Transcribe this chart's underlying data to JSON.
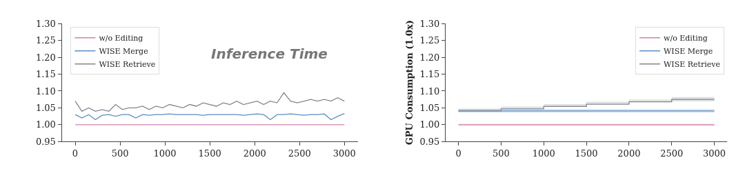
{
  "chart_data": [
    {
      "type": "line",
      "title": "Inference Time",
      "legend": "top left",
      "xlim": [
        -150,
        3150
      ],
      "xticks": [
        0,
        500,
        1000,
        1500,
        2000,
        2500,
        3000
      ],
      "ylim": [
        0.95,
        1.3
      ],
      "yticks": [
        0.95,
        {
          "value": 1.0,
          "label": "1.00"
        },
        1.05,
        {
          "value": 1.1,
          "label": "1.10"
        },
        1.15,
        {
          "value": 1.2,
          "label": "1.20"
        },
        1.25,
        {
          "value": 1.3,
          "label": "1.30"
        }
      ],
      "series": [
        {
          "name": "w/o Editing",
          "color": "#d580a8",
          "x": [
            0,
            3000
          ],
          "values": [
            1.0,
            1.0
          ]
        },
        {
          "name": "WISE Merge",
          "color": "#5b8cc4",
          "x": [
            0,
            75,
            150,
            225,
            300,
            375,
            450,
            525,
            600,
            675,
            750,
            825,
            900,
            975,
            1050,
            1125,
            1200,
            1275,
            1350,
            1425,
            1500,
            1575,
            1650,
            1725,
            1800,
            1875,
            1950,
            2025,
            2100,
            2175,
            2250,
            2325,
            2400,
            2475,
            2550,
            2625,
            2700,
            2775,
            2850,
            2925,
            3000
          ],
          "values": [
            1.03,
            1.02,
            1.03,
            1.015,
            1.028,
            1.03,
            1.025,
            1.03,
            1.03,
            1.02,
            1.03,
            1.028,
            1.03,
            1.03,
            1.032,
            1.03,
            1.03,
            1.03,
            1.03,
            1.028,
            1.03,
            1.03,
            1.03,
            1.03,
            1.03,
            1.028,
            1.03,
            1.032,
            1.03,
            1.015,
            1.03,
            1.03,
            1.032,
            1.03,
            1.028,
            1.03,
            1.03,
            1.032,
            1.015,
            1.025,
            1.033
          ]
        },
        {
          "name": "WISE Retrieve",
          "color": "#80868f",
          "x": [
            0,
            75,
            150,
            225,
            300,
            375,
            450,
            525,
            600,
            675,
            750,
            825,
            900,
            975,
            1050,
            1125,
            1200,
            1275,
            1350,
            1425,
            1500,
            1575,
            1650,
            1725,
            1800,
            1875,
            1950,
            2025,
            2100,
            2175,
            2250,
            2325,
            2400,
            2475,
            2550,
            2625,
            2700,
            2775,
            2850,
            2925,
            3000
          ],
          "values": [
            1.07,
            1.04,
            1.05,
            1.04,
            1.045,
            1.04,
            1.06,
            1.045,
            1.05,
            1.05,
            1.055,
            1.045,
            1.055,
            1.05,
            1.06,
            1.055,
            1.05,
            1.06,
            1.055,
            1.065,
            1.06,
            1.055,
            1.065,
            1.06,
            1.07,
            1.06,
            1.065,
            1.07,
            1.06,
            1.07,
            1.065,
            1.095,
            1.07,
            1.065,
            1.07,
            1.075,
            1.07,
            1.075,
            1.07,
            1.08,
            1.07
          ]
        }
      ]
    },
    {
      "type": "step",
      "ylabel": "GPU Consumption (1.0x)",
      "legend": "top right",
      "xlim": [
        -150,
        3150
      ],
      "xticks": [
        0,
        500,
        1000,
        1500,
        2000,
        2500,
        3000
      ],
      "ylim": [
        0.95,
        1.3
      ],
      "yticks": [
        0.95,
        {
          "value": 1.0,
          "label": "1.00"
        },
        1.05,
        {
          "value": 1.1,
          "label": "1.10"
        },
        1.15,
        {
          "value": 1.2,
          "label": "1.20"
        },
        1.25,
        {
          "value": 1.3,
          "label": "1.30"
        }
      ],
      "series": [
        {
          "name": "w/o Editing",
          "color": "#d580a8",
          "x": [
            0,
            3000
          ],
          "values": [
            1.0,
            1.0
          ],
          "lower": [
            0.997,
            0.997
          ],
          "upper": [
            1.003,
            1.003
          ]
        },
        {
          "name": "WISE Merge",
          "color": "#5b8cc4",
          "x": [
            0,
            3000
          ],
          "values": [
            1.041,
            1.041
          ],
          "lower": [
            1.036,
            1.036
          ],
          "upper": [
            1.046,
            1.046
          ]
        },
        {
          "name": "WISE Retrieve",
          "color": "#80868f",
          "x": [
            0,
            500,
            1000,
            1500,
            2000,
            2500,
            3000
          ],
          "values": [
            1.041,
            1.047,
            1.054,
            1.061,
            1.068,
            1.075,
            1.075
          ],
          "lower": [
            1.035,
            1.041,
            1.048,
            1.055,
            1.062,
            1.069,
            1.069
          ],
          "upper": [
            1.048,
            1.054,
            1.061,
            1.068,
            1.075,
            1.082,
            1.082
          ]
        }
      ]
    }
  ]
}
